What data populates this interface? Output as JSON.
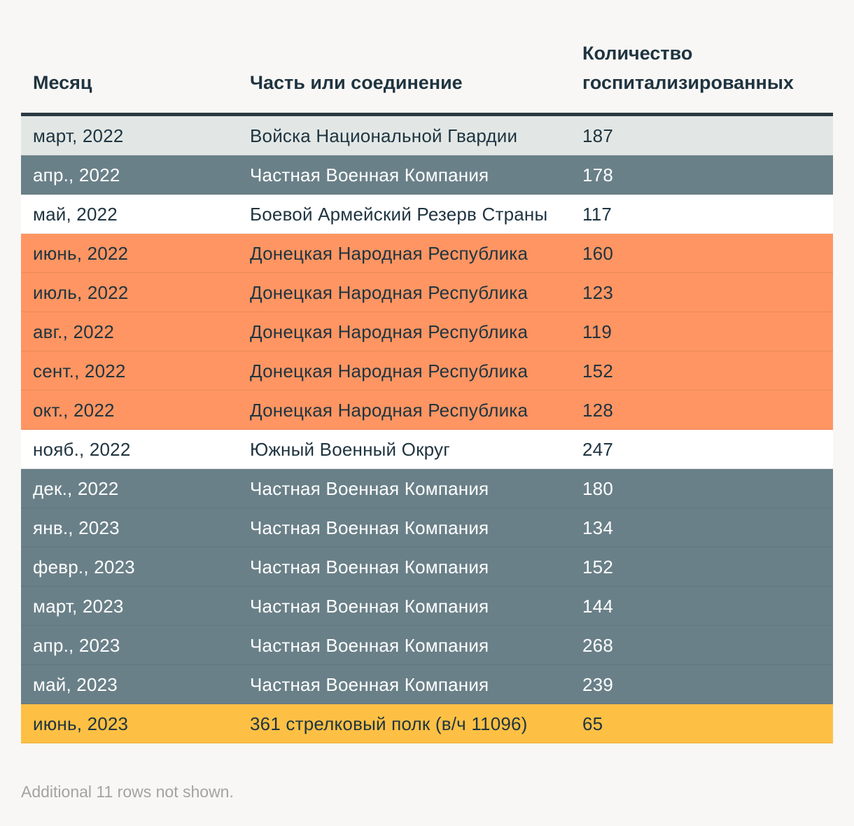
{
  "chart_data": {
    "type": "table",
    "columns": [
      "Месяц",
      "Часть или соединение",
      "Количество госпитализированных"
    ],
    "rows": [
      {
        "month": "март, 2022",
        "unit": "Войска Национальной Гвардии",
        "count": "187",
        "color": "#e2e7e5",
        "dark": false
      },
      {
        "month": "апр., 2022",
        "unit": "Частная Военная Компания",
        "count": "178",
        "color": "#6a8088",
        "dark": true
      },
      {
        "month": "май, 2022",
        "unit": "Боевой Армейский Резерв Страны",
        "count": "117",
        "color": "#ffffff",
        "dark": false
      },
      {
        "month": "июнь, 2022",
        "unit": "Донецкая Народная Республика",
        "count": "160",
        "color": "#fe9562",
        "dark": false
      },
      {
        "month": "июль, 2022",
        "unit": "Донецкая Народная Республика",
        "count": "123",
        "color": "#fe9562",
        "dark": false
      },
      {
        "month": "авг., 2022",
        "unit": "Донецкая Народная Республика",
        "count": "119",
        "color": "#fe9562",
        "dark": false
      },
      {
        "month": "сент., 2022",
        "unit": "Донецкая Народная Республика",
        "count": "152",
        "color": "#fe9562",
        "dark": false
      },
      {
        "month": "окт., 2022",
        "unit": "Донецкая Народная Республика",
        "count": "128",
        "color": "#fe9562",
        "dark": false
      },
      {
        "month": "нояб., 2022",
        "unit": "Южный Военный Округ",
        "count": "247",
        "color": "#ffffff",
        "dark": false
      },
      {
        "month": "дек., 2022",
        "unit": "Частная Военная Компания",
        "count": "180",
        "color": "#6a8088",
        "dark": true
      },
      {
        "month": "янв., 2023",
        "unit": "Частная Военная Компания",
        "count": "134",
        "color": "#6a8088",
        "dark": true
      },
      {
        "month": "февр., 2023",
        "unit": "Частная Военная Компания",
        "count": "152",
        "color": "#6a8088",
        "dark": true
      },
      {
        "month": "март, 2023",
        "unit": "Частная Военная Компания",
        "count": "144",
        "color": "#6a8088",
        "dark": true
      },
      {
        "month": "апр., 2023",
        "unit": "Частная Военная Компания",
        "count": "268",
        "color": "#6a8088",
        "dark": true
      },
      {
        "month": "май, 2023",
        "unit": "Частная Военная Компания",
        "count": "239",
        "color": "#6a8088",
        "dark": true
      },
      {
        "month": "июнь, 2023",
        "unit": "361 стрелковый полк (в/ч 11096)",
        "count": "65",
        "color": "#fec044",
        "dark": false
      }
    ],
    "footnote": "Additional 11 rows not shown."
  }
}
